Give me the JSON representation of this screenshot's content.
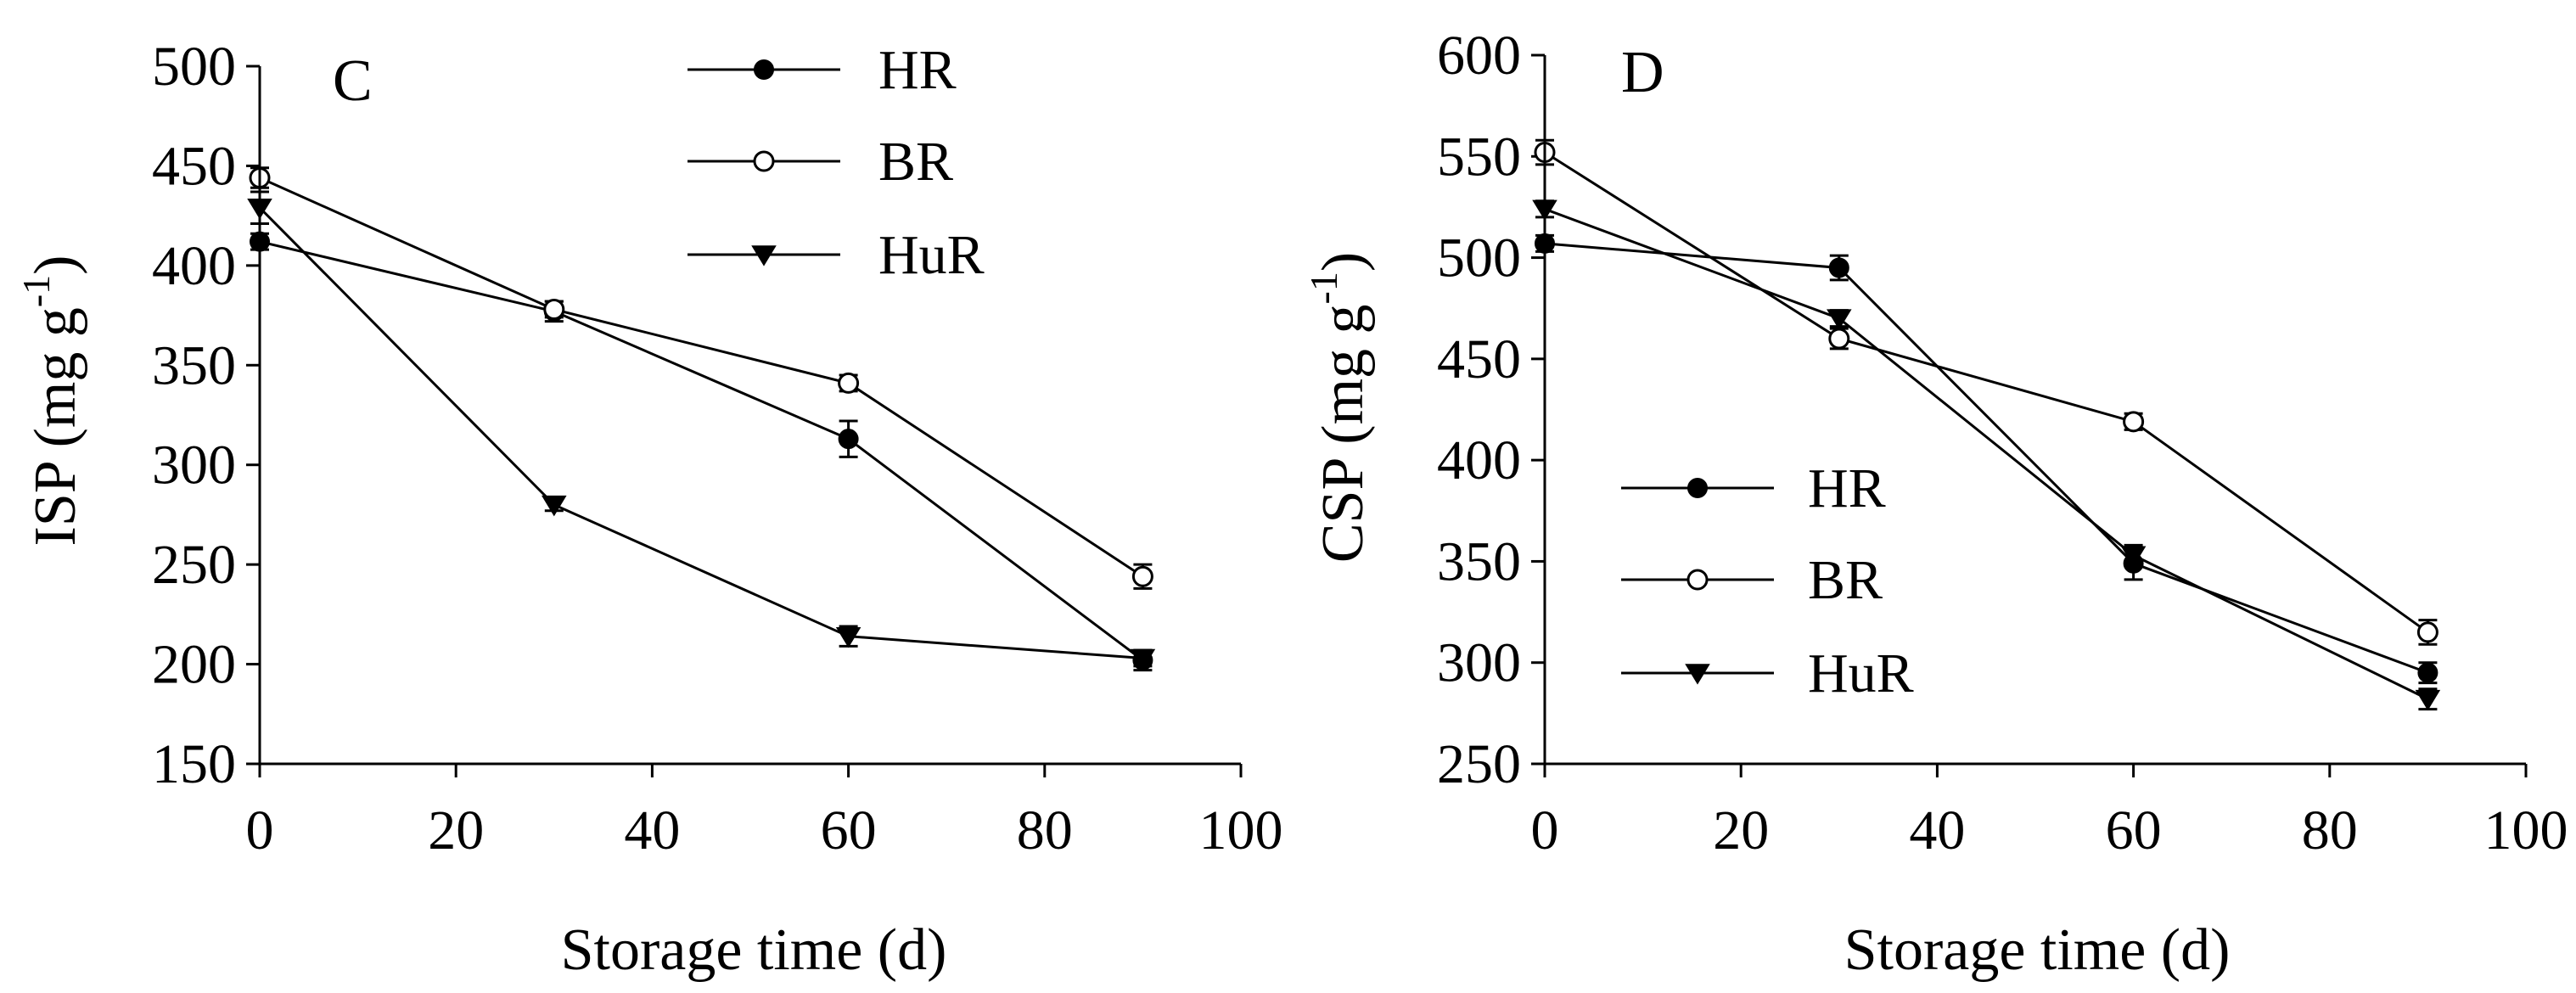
{
  "chart_data": [
    {
      "type": "line",
      "panel_label": "C",
      "xlabel": "Storage time (d)",
      "ylabel_main": "ISP (mg g",
      "ylabel_sup": "-1",
      "ylabel_close": ")",
      "xlim": [
        0,
        100
      ],
      "ylim": [
        150,
        500
      ],
      "xticks": [
        0,
        20,
        40,
        60,
        80,
        100
      ],
      "xtick_labels": [
        "0",
        "20",
        "40",
        "60",
        "80",
        "100"
      ],
      "yticks": [
        150,
        200,
        250,
        300,
        350,
        400,
        450,
        500
      ],
      "ytick_labels": [
        "150",
        "200",
        "250",
        "300",
        "350",
        "400",
        "450",
        "500"
      ],
      "legend_position": "top-center",
      "x": [
        0,
        30,
        60,
        90
      ],
      "series": [
        {
          "name": "HR",
          "marker": "filled-circle",
          "values": [
            412,
            377,
            313,
            202
          ],
          "errors": [
            4,
            5,
            9,
            5
          ]
        },
        {
          "name": "BR",
          "marker": "open-circle",
          "values": [
            444,
            378,
            341,
            244
          ],
          "errors": [
            5,
            4,
            4,
            6
          ]
        },
        {
          "name": "HuR",
          "marker": "filled-triangle-down",
          "values": [
            429,
            280,
            214,
            203
          ],
          "errors": [
            8,
            3,
            5,
            4
          ]
        }
      ]
    },
    {
      "type": "line",
      "panel_label": "D",
      "xlabel": "Storage time (d)",
      "ylabel_main": "CSP (mg g",
      "ylabel_sup": "-1",
      "ylabel_close": ")",
      "xlim": [
        0,
        100
      ],
      "ylim": [
        250,
        600
      ],
      "xticks": [
        0,
        20,
        40,
        60,
        80,
        100
      ],
      "xtick_labels": [
        "0",
        "20",
        "40",
        "60",
        "80",
        "100"
      ],
      "yticks": [
        250,
        300,
        350,
        400,
        450,
        500,
        550,
        600
      ],
      "ytick_labels": [
        "250",
        "300",
        "350",
        "400",
        "450",
        "500",
        "550",
        "600"
      ],
      "legend_position": "center-left",
      "x": [
        0,
        30,
        60,
        90
      ],
      "series": [
        {
          "name": "HR",
          "marker": "filled-circle",
          "values": [
            507,
            495,
            349,
            295
          ],
          "errors": [
            4,
            6,
            8,
            5
          ]
        },
        {
          "name": "BR",
          "marker": "open-circle",
          "values": [
            552,
            460,
            419,
            315
          ],
          "errors": [
            6,
            5,
            4,
            6
          ]
        },
        {
          "name": "HuR",
          "marker": "filled-triangle-down",
          "values": [
            524,
            470,
            353,
            282
          ],
          "errors": [
            4,
            4,
            5,
            5
          ]
        }
      ]
    }
  ]
}
